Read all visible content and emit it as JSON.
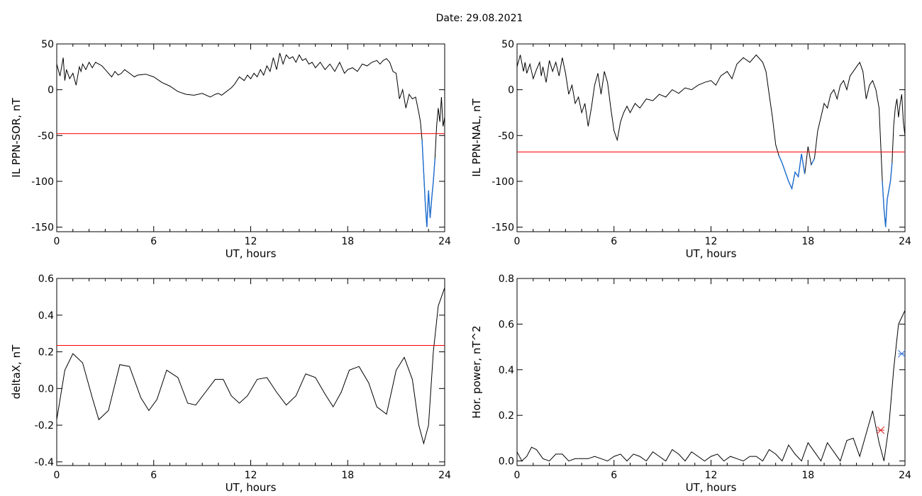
{
  "title": "Date:  29.08.2021",
  "colors": {
    "trace": "#000000",
    "threshold": "#ff0000",
    "below": "#1f6fd1",
    "marker_red": "#e02020",
    "marker_blue": "#2f6fd8"
  },
  "chart_data": [
    {
      "type": "line",
      "title": "",
      "xlabel": "UT, hours",
      "ylabel": "IL PPN-SOR, nT",
      "xlim": [
        0,
        24
      ],
      "ylim": [
        -155,
        50
      ],
      "xticks": [
        0,
        6,
        12,
        18,
        24
      ],
      "yticks": [
        50,
        0,
        -50,
        -100,
        -150
      ],
      "threshold": -48,
      "x": [
        0,
        0.2,
        0.4,
        0.5,
        0.6,
        0.8,
        1.0,
        1.2,
        1.4,
        1.5,
        1.6,
        1.8,
        2.0,
        2.2,
        2.4,
        2.6,
        2.8,
        3.0,
        3.2,
        3.4,
        3.6,
        3.8,
        4.0,
        4.2,
        4.5,
        4.8,
        5.0,
        5.5,
        6.0,
        6.5,
        7.0,
        7.5,
        8.0,
        8.5,
        9.0,
        9.5,
        9.8,
        10.0,
        10.2,
        10.5,
        10.8,
        11.0,
        11.3,
        11.6,
        11.8,
        12.0,
        12.2,
        12.4,
        12.6,
        12.8,
        13.0,
        13.2,
        13.4,
        13.6,
        13.8,
        14.0,
        14.2,
        14.4,
        14.6,
        14.8,
        15.0,
        15.2,
        15.4,
        15.6,
        15.8,
        16.0,
        16.3,
        16.6,
        16.9,
        17.2,
        17.5,
        17.8,
        18.0,
        18.3,
        18.6,
        18.9,
        19.2,
        19.5,
        19.8,
        20.0,
        20.2,
        20.4,
        20.6,
        20.8,
        21.0,
        21.2,
        21.4,
        21.6,
        21.8,
        22.0,
        22.2,
        22.4,
        22.5,
        22.6,
        22.7,
        22.8,
        22.9,
        23.0,
        23.1,
        23.2,
        23.3,
        23.4,
        23.5,
        23.6,
        23.7,
        23.8,
        23.9,
        24.0
      ],
      "y": [
        28,
        15,
        35,
        10,
        22,
        12,
        18,
        5,
        25,
        20,
        28,
        22,
        30,
        24,
        30,
        28,
        26,
        22,
        18,
        14,
        20,
        16,
        18,
        22,
        18,
        14,
        16,
        17,
        14,
        8,
        4,
        -2,
        -5,
        -6,
        -4,
        -8,
        -5,
        -4,
        -6,
        -2,
        2,
        6,
        14,
        10,
        16,
        12,
        18,
        14,
        22,
        16,
        26,
        20,
        35,
        22,
        40,
        28,
        38,
        34,
        36,
        30,
        38,
        32,
        34,
        28,
        30,
        24,
        30,
        22,
        28,
        20,
        30,
        18,
        22,
        24,
        20,
        28,
        26,
        30,
        32,
        28,
        32,
        34,
        30,
        20,
        18,
        -10,
        0,
        -20,
        -5,
        -10,
        -8,
        -25,
        -35,
        -55,
        -90,
        -125,
        -150,
        -110,
        -140,
        -118,
        -100,
        -75,
        -40,
        -20,
        -35,
        -8,
        -40,
        -30
      ]
    },
    {
      "type": "line",
      "title": "",
      "xlabel": "UT, hours",
      "ylabel": "IL PPN-NAL, nT",
      "xlim": [
        0,
        24
      ],
      "ylim": [
        -155,
        50
      ],
      "xticks": [
        0,
        6,
        12,
        18,
        24
      ],
      "yticks": [
        50,
        0,
        -50,
        -100,
        -150
      ],
      "threshold": -68,
      "x": [
        0,
        0.2,
        0.4,
        0.5,
        0.6,
        0.8,
        1.0,
        1.2,
        1.4,
        1.5,
        1.6,
        1.8,
        2.0,
        2.2,
        2.4,
        2.6,
        2.8,
        3.0,
        3.2,
        3.4,
        3.6,
        3.8,
        4.0,
        4.2,
        4.4,
        4.6,
        4.8,
        5.0,
        5.2,
        5.4,
        5.6,
        5.8,
        6.0,
        6.2,
        6.4,
        6.6,
        6.8,
        7.0,
        7.3,
        7.6,
        8.0,
        8.4,
        8.8,
        9.2,
        9.6,
        10.0,
        10.4,
        10.8,
        11.2,
        11.6,
        12.0,
        12.3,
        12.6,
        13.0,
        13.3,
        13.6,
        14.0,
        14.4,
        14.8,
        15.2,
        15.4,
        15.6,
        15.8,
        16.0,
        16.2,
        16.4,
        16.6,
        16.8,
        17.0,
        17.2,
        17.4,
        17.6,
        17.8,
        18.0,
        18.2,
        18.4,
        18.6,
        18.8,
        19.0,
        19.2,
        19.4,
        19.6,
        19.8,
        20.0,
        20.2,
        20.4,
        20.6,
        20.8,
        21.0,
        21.2,
        21.4,
        21.6,
        21.8,
        22.0,
        22.2,
        22.4,
        22.5,
        22.6,
        22.7,
        22.8,
        22.9,
        23.0,
        23.1,
        23.2,
        23.3,
        23.4,
        23.5,
        23.6,
        23.7,
        23.8,
        23.9,
        24.0
      ],
      "y": [
        25,
        38,
        20,
        30,
        18,
        28,
        12,
        22,
        30,
        15,
        25,
        8,
        32,
        20,
        30,
        15,
        35,
        18,
        -5,
        5,
        -15,
        -8,
        -25,
        -15,
        -40,
        -20,
        5,
        18,
        -5,
        20,
        8,
        -20,
        -45,
        -55,
        -35,
        -25,
        -18,
        -25,
        -15,
        -20,
        -10,
        -12,
        -5,
        -8,
        0,
        -4,
        2,
        0,
        5,
        8,
        10,
        5,
        15,
        20,
        12,
        28,
        35,
        30,
        38,
        30,
        20,
        -5,
        -30,
        -60,
        -72,
        -80,
        -90,
        -100,
        -108,
        -90,
        -95,
        -70,
        -92,
        -62,
        -82,
        -75,
        -45,
        -30,
        -15,
        -20,
        -5,
        0,
        -10,
        5,
        10,
        0,
        15,
        20,
        25,
        30,
        20,
        -10,
        5,
        10,
        0,
        -20,
        -60,
        -100,
        -130,
        -150,
        -120,
        -110,
        -100,
        -80,
        -40,
        -20,
        -10,
        -30,
        -15,
        -5,
        -35,
        -50
      ]
    },
    {
      "type": "line",
      "title": "",
      "xlabel": "UT, hours",
      "ylabel": "deltaX, nT",
      "xlim": [
        0,
        24
      ],
      "ylim": [
        -0.42,
        0.6
      ],
      "xticks": [
        0,
        6,
        12,
        18,
        24
      ],
      "yticks": [
        0.6,
        0.4,
        0.2,
        0.0,
        -0.2,
        -0.4
      ],
      "threshold": 0.235,
      "x": [
        0,
        0.5,
        1.0,
        1.6,
        2.2,
        2.6,
        3.2,
        3.9,
        4.5,
        5.2,
        5.7,
        6.2,
        6.8,
        7.5,
        8.1,
        8.6,
        9.2,
        9.8,
        10.3,
        10.8,
        11.3,
        11.8,
        12.4,
        13.0,
        13.6,
        14.2,
        14.8,
        15.4,
        16.0,
        16.6,
        17.1,
        17.6,
        18.1,
        18.7,
        19.3,
        19.8,
        20.4,
        21.0,
        21.5,
        22.0,
        22.4,
        22.7,
        23.0,
        23.3,
        23.6,
        24.0
      ],
      "y": [
        -0.17,
        0.1,
        0.19,
        0.14,
        -0.05,
        -0.17,
        -0.12,
        0.13,
        0.12,
        -0.05,
        -0.12,
        -0.06,
        0.1,
        0.06,
        -0.08,
        -0.09,
        -0.02,
        0.05,
        0.05,
        -0.04,
        -0.08,
        -0.04,
        0.05,
        0.06,
        -0.02,
        -0.09,
        -0.04,
        0.08,
        0.06,
        -0.03,
        -0.1,
        -0.02,
        0.1,
        0.12,
        0.03,
        -0.1,
        -0.14,
        0.1,
        0.17,
        0.05,
        -0.2,
        -0.3,
        -0.2,
        0.2,
        0.45,
        0.55
      ]
    },
    {
      "type": "line",
      "title": "",
      "xlabel": "UT, hours",
      "ylabel": "Hor. power, nT^2",
      "xlim": [
        0,
        24
      ],
      "ylim": [
        -0.02,
        0.8
      ],
      "xticks": [
        0,
        6,
        12,
        18,
        24
      ],
      "yticks": [
        0.8,
        0.6,
        0.4,
        0.2,
        0.0
      ],
      "markers": [
        {
          "x": 22.5,
          "y": 0.135,
          "color": "marker_red"
        },
        {
          "x": 23.8,
          "y": 0.47,
          "color": "marker_blue"
        }
      ],
      "x": [
        0,
        0.3,
        0.6,
        0.9,
        1.2,
        1.6,
        2.0,
        2.4,
        2.8,
        3.2,
        3.6,
        4.0,
        4.4,
        4.8,
        5.2,
        5.6,
        6.0,
        6.4,
        6.8,
        7.2,
        7.6,
        8.0,
        8.4,
        8.8,
        9.2,
        9.6,
        10.0,
        10.4,
        10.8,
        11.2,
        11.6,
        12.0,
        12.4,
        12.8,
        13.2,
        13.6,
        14.0,
        14.4,
        14.8,
        15.2,
        15.6,
        16.0,
        16.4,
        16.8,
        17.2,
        17.6,
        18.0,
        18.4,
        18.8,
        19.2,
        19.6,
        20.0,
        20.4,
        20.8,
        21.2,
        21.6,
        22.0,
        22.4,
        22.7,
        23.0,
        23.3,
        23.6,
        24.0
      ],
      "y": [
        0.04,
        0.0,
        0.02,
        0.06,
        0.05,
        0.01,
        0.0,
        0.03,
        0.03,
        0.0,
        0.01,
        0.01,
        0.01,
        0.02,
        0.01,
        0.0,
        0.02,
        0.03,
        0.0,
        0.03,
        0.02,
        0.0,
        0.04,
        0.02,
        0.0,
        0.05,
        0.03,
        0.0,
        0.04,
        0.02,
        0.0,
        0.02,
        0.03,
        0.0,
        0.02,
        0.01,
        0.0,
        0.02,
        0.02,
        0.0,
        0.05,
        0.03,
        0.0,
        0.07,
        0.03,
        0.0,
        0.08,
        0.04,
        0.0,
        0.08,
        0.04,
        0.0,
        0.09,
        0.1,
        0.02,
        0.12,
        0.22,
        0.08,
        0.0,
        0.15,
        0.4,
        0.6,
        0.66
      ]
    }
  ]
}
